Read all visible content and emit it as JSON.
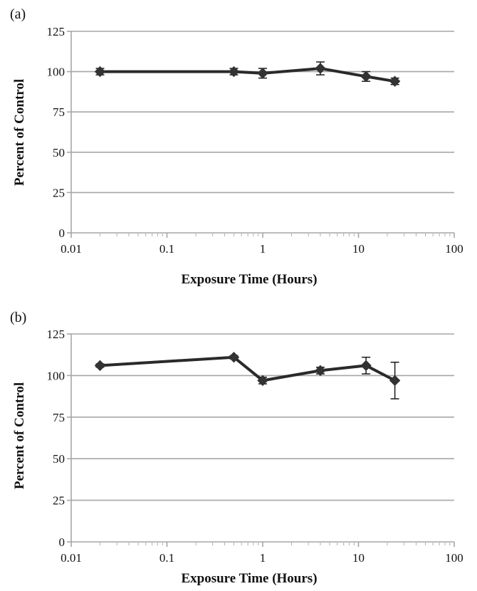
{
  "chart_data": [
    {
      "type": "line",
      "panel_label": "(a)",
      "xlabel": "Exposure Time (Hours)",
      "ylabel": "Percent of Control",
      "x_scale": "log",
      "xlim": [
        0.01,
        100
      ],
      "ylim": [
        0,
        125
      ],
      "x_ticks": [
        "0.01",
        "0.1",
        "1",
        "10",
        "100"
      ],
      "y_ticks": [
        "0",
        "25",
        "50",
        "75",
        "100",
        "125"
      ],
      "grid": "horizontal",
      "series": [
        {
          "x": [
            0.02,
            0.5,
            1,
            4,
            12,
            24
          ],
          "y": [
            100,
            100,
            99,
            102,
            97,
            94
          ],
          "error": [
            2,
            2,
            3,
            4,
            3,
            2
          ]
        }
      ]
    },
    {
      "type": "line",
      "panel_label": "(b)",
      "xlabel": "Exposure Time (Hours)",
      "ylabel": "Percent of Control",
      "x_scale": "log",
      "xlim": [
        0.01,
        100
      ],
      "ylim": [
        0,
        125
      ],
      "x_ticks": [
        "0.01",
        "0.1",
        "1",
        "10",
        "100"
      ],
      "y_ticks": [
        "0",
        "25",
        "50",
        "75",
        "100",
        "125"
      ],
      "grid": "horizontal",
      "series": [
        {
          "x": [
            0.02,
            0.5,
            1,
            4,
            12,
            24
          ],
          "y": [
            106,
            111,
            97,
            103,
            106,
            97
          ],
          "error": [
            1,
            1,
            2,
            2,
            5,
            11
          ]
        }
      ]
    }
  ]
}
